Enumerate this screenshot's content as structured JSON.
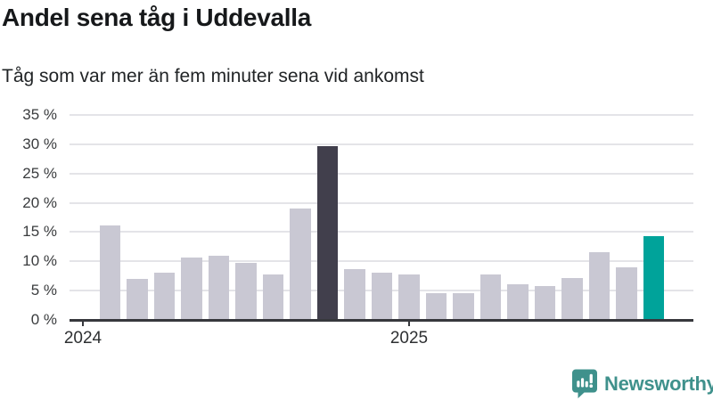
{
  "header": {
    "title": "Andel sena tåg i Uddevalla",
    "subtitle": "Tåg som var mer än fem minuter sena vid ankomst"
  },
  "chart_data": {
    "type": "bar",
    "title": "Andel sena tåg i Uddevalla",
    "subtitle": "Tåg som var mer än fem minuter sena vid ankomst",
    "unit": "percent",
    "values": [
      16.2,
      7.0,
      8.1,
      10.7,
      11.0,
      9.8,
      7.8,
      19.0,
      29.7,
      8.6,
      8.0,
      7.7,
      4.6,
      4.5,
      7.8,
      6.1,
      5.8,
      7.2,
      11.6,
      9.0,
      14.3
    ],
    "highlight_dark_index": 8,
    "highlight_teal_index": 20,
    "ylim": [
      0,
      35
    ],
    "y_ticks": [
      {
        "value": 0,
        "label": "0 %"
      },
      {
        "value": 5,
        "label": "5 %"
      },
      {
        "value": 10,
        "label": "10 %"
      },
      {
        "value": 15,
        "label": "15 %"
      },
      {
        "value": 20,
        "label": "20 %"
      },
      {
        "value": 25,
        "label": "25 %"
      },
      {
        "value": 30,
        "label": "30 %"
      },
      {
        "value": 35,
        "label": "35 %"
      }
    ],
    "x_ticks": [
      {
        "label": "2024",
        "slot": 0
      },
      {
        "label": "2025",
        "slot": 12
      }
    ],
    "bars_start_slot": 1,
    "grid": true,
    "legend": "none"
  },
  "colors": {
    "bar": "#c9c8d3",
    "bar_highlight_dark": "#413f4c",
    "bar_highlight_teal": "#00a39a",
    "gridline": "#e4e4e8",
    "axis": "#37383d",
    "brand_teal": "#3f918c",
    "background": "#ffffff"
  },
  "footer": {
    "brand": "Newsworthy"
  }
}
